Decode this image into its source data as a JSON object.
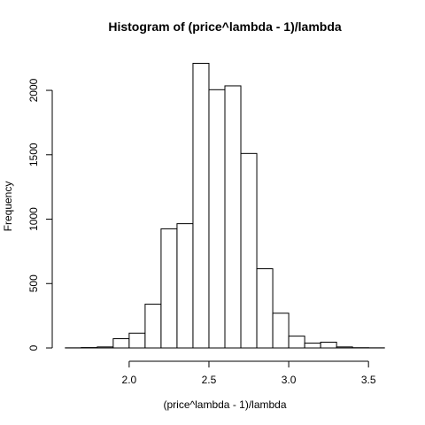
{
  "chart_data": {
    "type": "bar",
    "title": "Histogram of (price^lambda - 1)/lambda",
    "xlabel": "(price^lambda - 1)/lambda",
    "ylabel": "Frequency",
    "bin_width": 0.1,
    "bin_edges": [
      1.6,
      1.7,
      1.8,
      1.9,
      2.0,
      2.1,
      2.2,
      2.3,
      2.4,
      2.5,
      2.6,
      2.7,
      2.8,
      2.9,
      3.0,
      3.1,
      3.2,
      3.3,
      3.4,
      3.5,
      3.6
    ],
    "values": [
      1,
      3,
      8,
      72,
      115,
      340,
      925,
      965,
      2210,
      2005,
      2035,
      1510,
      615,
      270,
      92,
      38,
      45,
      8,
      2,
      1
    ],
    "xlim": [
      1.6,
      3.6
    ],
    "ylim": [
      0,
      2210
    ],
    "x_ticks": [
      2.0,
      2.5,
      3.0,
      3.5
    ],
    "x_tick_labels": [
      "2.0",
      "2.5",
      "3.0",
      "3.5"
    ],
    "y_ticks": [
      0,
      500,
      1000,
      1500,
      2000
    ],
    "y_tick_labels": [
      "0",
      "500",
      "1000",
      "1500",
      "2000"
    ],
    "grid": false,
    "legend": "none",
    "bar_fill": "#ffffff",
    "bar_stroke": "#000000"
  }
}
